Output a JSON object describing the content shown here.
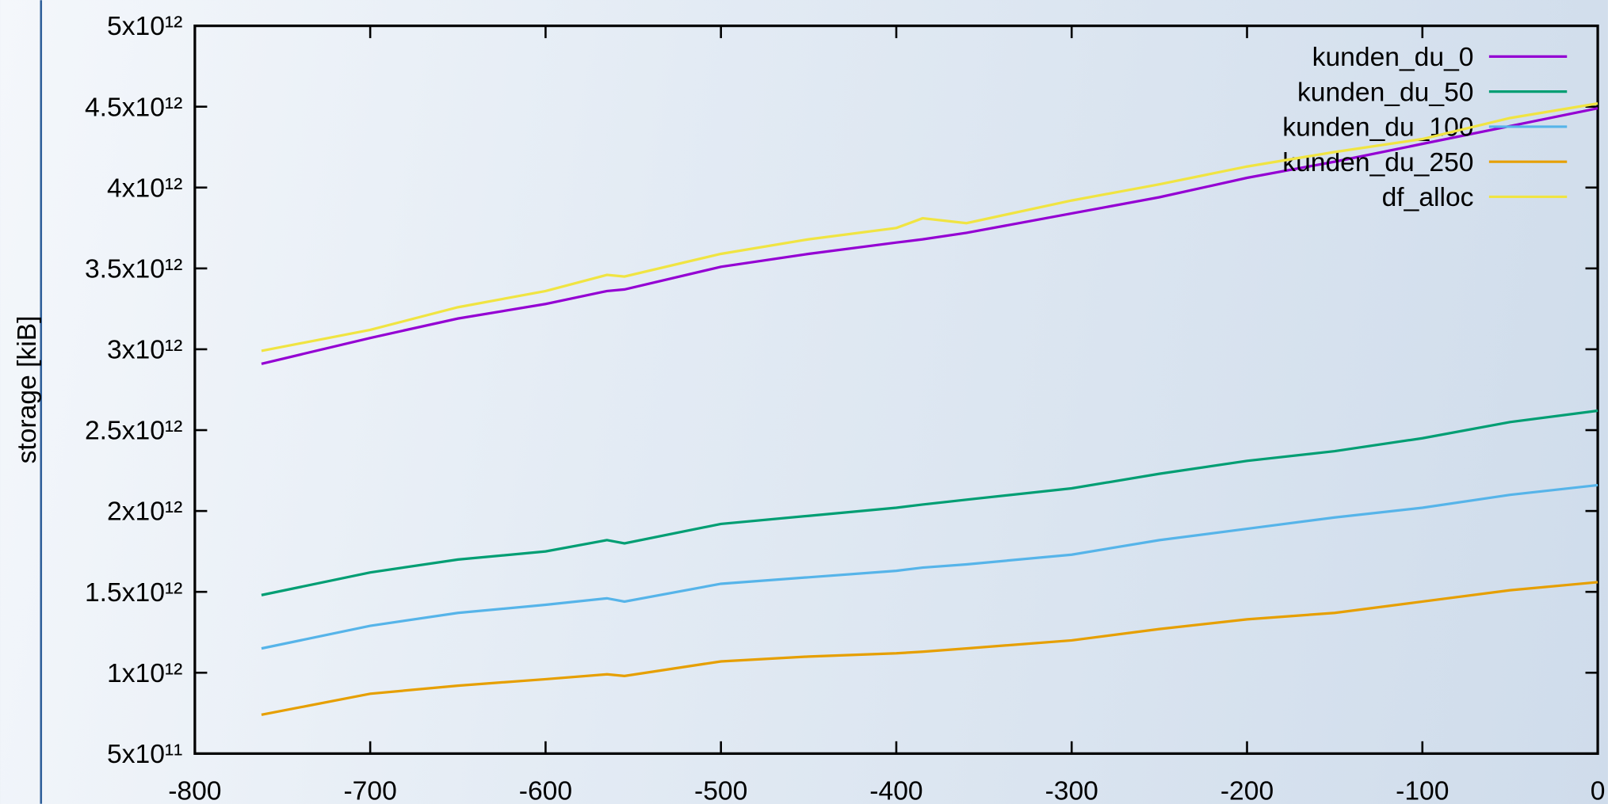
{
  "chart_data": {
    "type": "line",
    "y_label": "storage [kiB]",
    "x": [
      -762,
      -700,
      -650,
      -600,
      -565,
      -555,
      -500,
      -450,
      -400,
      -385,
      -360,
      -300,
      -250,
      -200,
      -150,
      -100,
      -50,
      0
    ],
    "xlim": [
      -800,
      0
    ],
    "xticks": [
      -800,
      -700,
      -600,
      -500,
      -400,
      -300,
      -200,
      -100,
      0
    ],
    "ylim": [
      500000000000,
      5000000000000
    ],
    "yticks": [
      {
        "value": 500000000000,
        "label": "5x10¹¹"
      },
      {
        "value": 1000000000000,
        "label": "1x10¹²"
      },
      {
        "value": 1500000000000,
        "label": "1.5x10¹²"
      },
      {
        "value": 2000000000000,
        "label": "2x10¹²"
      },
      {
        "value": 2500000000000,
        "label": "2.5x10¹²"
      },
      {
        "value": 3000000000000,
        "label": "3x10¹²"
      },
      {
        "value": 3500000000000,
        "label": "3.5x10¹²"
      },
      {
        "value": 4000000000000,
        "label": "4x10¹²"
      },
      {
        "value": 4500000000000,
        "label": "4.5x10¹²"
      },
      {
        "value": 5000000000000,
        "label": "5x10¹²"
      }
    ],
    "legend": "top-right",
    "series": [
      {
        "name": "kunden_du_0",
        "color": "#9400d3",
        "values": [
          2910000000000,
          3070000000000,
          3190000000000,
          3280000000000,
          3360000000000,
          3370000000000,
          3510000000000,
          3590000000000,
          3660000000000,
          3680000000000,
          3720000000000,
          3840000000000,
          3940000000000,
          4060000000000,
          4160000000000,
          4270000000000,
          4380000000000,
          4490000000000
        ]
      },
      {
        "name": "kunden_du_50",
        "color": "#009e73",
        "values": [
          1480000000000,
          1620000000000,
          1700000000000,
          1750000000000,
          1820000000000,
          1800000000000,
          1920000000000,
          1970000000000,
          2020000000000,
          2040000000000,
          2070000000000,
          2140000000000,
          2230000000000,
          2310000000000,
          2370000000000,
          2450000000000,
          2550000000000,
          2620000000000
        ]
      },
      {
        "name": "kunden_du_100",
        "color": "#56b4e9",
        "values": [
          1150000000000,
          1290000000000,
          1370000000000,
          1420000000000,
          1460000000000,
          1440000000000,
          1550000000000,
          1590000000000,
          1630000000000,
          1650000000000,
          1670000000000,
          1730000000000,
          1820000000000,
          1890000000000,
          1960000000000,
          2020000000000,
          2100000000000,
          2160000000000
        ]
      },
      {
        "name": "kunden_du_250",
        "color": "#e69f00",
        "values": [
          740000000000,
          870000000000,
          920000000000,
          960000000000,
          990000000000,
          980000000000,
          1070000000000,
          1100000000000,
          1120000000000,
          1130000000000,
          1150000000000,
          1200000000000,
          1270000000000,
          1330000000000,
          1370000000000,
          1440000000000,
          1510000000000,
          1560000000000
        ]
      },
      {
        "name": "df_alloc",
        "color": "#f0e442",
        "values": [
          2990000000000,
          3120000000000,
          3260000000000,
          3360000000000,
          3460000000000,
          3450000000000,
          3590000000000,
          3680000000000,
          3750000000000,
          3810000000000,
          3780000000000,
          3920000000000,
          4020000000000,
          4130000000000,
          4220000000000,
          4300000000000,
          4430000000000,
          4520000000000
        ]
      }
    ]
  }
}
